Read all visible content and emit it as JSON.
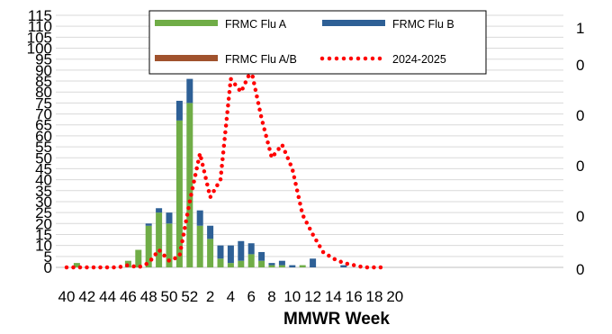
{
  "chart_data": {
    "type": "bar",
    "title": "",
    "xlabel": "MMWR Week",
    "ylabel": "",
    "left_axis": {
      "ylim": [
        0,
        115
      ],
      "ticks": [
        0,
        5,
        10,
        15,
        20,
        25,
        30,
        35,
        40,
        45,
        50,
        55,
        60,
        65,
        70,
        75,
        80,
        85,
        90,
        95,
        100,
        105,
        110,
        115
      ],
      "tick_labels": [
        "0",
        "5",
        "10",
        "15",
        "20",
        "25",
        "30",
        "35",
        "40",
        "45",
        "50",
        "55",
        "60",
        "65",
        "70",
        "75",
        "80",
        "85",
        "90",
        "95",
        "100",
        "105",
        "110",
        "115"
      ]
    },
    "right_axis": {
      "visible_tick_labels": [
        "0",
        "0",
        "0",
        "0",
        "0",
        "1"
      ]
    },
    "x_tick_labels": [
      "40",
      "42",
      "44",
      "46",
      "48",
      "50",
      "52",
      "2",
      "4",
      "6",
      "8",
      "10",
      "12",
      "14",
      "16",
      "18",
      "20"
    ],
    "weeks": [
      "40",
      "41",
      "42",
      "43",
      "44",
      "45",
      "46",
      "47",
      "48",
      "49",
      "50",
      "51",
      "52",
      "1",
      "2",
      "3",
      "4",
      "5",
      "6",
      "7",
      "8",
      "9",
      "10",
      "11",
      "12",
      "13",
      "14",
      "15",
      "16",
      "17",
      "18",
      "19"
    ],
    "bar_series": [
      {
        "name": "FRMC Flu A",
        "color": "#70ad47",
        "values": [
          0,
          2,
          0,
          0,
          0,
          0,
          3,
          8,
          19,
          25,
          20,
          67,
          75,
          19,
          13,
          4,
          2,
          3,
          6,
          3,
          1,
          1,
          0,
          1,
          0,
          0,
          0,
          0,
          0,
          0,
          0,
          0
        ]
      },
      {
        "name": "FRMC Flu B",
        "color": "#2e6096",
        "values": [
          0,
          0,
          0,
          0,
          0,
          0,
          0,
          0,
          1,
          2,
          5,
          9,
          11,
          7,
          6,
          6,
          8,
          9,
          5,
          4,
          1,
          2,
          1,
          0,
          4,
          0,
          0,
          1,
          0,
          0,
          0,
          0
        ]
      },
      {
        "name": "FRMC Flu A/B",
        "color": "#a0522d",
        "values": [
          0,
          0,
          0,
          0,
          0,
          0,
          0,
          0,
          0,
          0,
          0,
          0,
          0,
          0,
          0,
          0,
          0,
          0,
          0,
          0,
          0,
          0,
          0,
          0,
          0,
          0,
          0,
          0,
          0,
          0,
          0,
          0
        ]
      }
    ],
    "line_series": [
      {
        "name": "2024-2025",
        "color": "#ff0000",
        "style": "dotted",
        "values": [
          0,
          0,
          0,
          0,
          0,
          0,
          1,
          0,
          2,
          8,
          3,
          5,
          30,
          52,
          32,
          40,
          86,
          80,
          90,
          68,
          50,
          56,
          45,
          24,
          15,
          7,
          4,
          2,
          1,
          0,
          0,
          0
        ]
      }
    ],
    "legend": {
      "placement": "top-center",
      "columns": 2
    },
    "grid": true
  }
}
